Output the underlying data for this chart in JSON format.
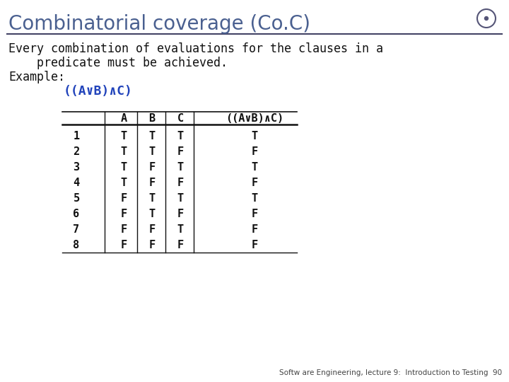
{
  "title": "Combinatorial coverage (Co.C)",
  "bg_color": "#ffffff",
  "title_color": "#4a6090",
  "title_fontsize": 20,
  "body_text_line1": "Every combination of evaluations for the clauses in a",
  "body_text_line2": "    predicate must be achieved.",
  "body_text_line3": "Example:",
  "formula": "((A∨B)∧C)",
  "formula_color": "#2244bb",
  "table_headers": [
    "",
    "A",
    "B",
    "C",
    "((A∨B)∧C)"
  ],
  "table_rows": [
    [
      "1",
      "T",
      "T",
      "T",
      "T"
    ],
    [
      "2",
      "T",
      "T",
      "F",
      "F"
    ],
    [
      "3",
      "T",
      "F",
      "T",
      "T"
    ],
    [
      "4",
      "T",
      "F",
      "F",
      "F"
    ],
    [
      "5",
      "F",
      "T",
      "T",
      "T"
    ],
    [
      "6",
      "F",
      "T",
      "F",
      "F"
    ],
    [
      "7",
      "F",
      "F",
      "T",
      "F"
    ],
    [
      "8",
      "F",
      "F",
      "F",
      "F"
    ]
  ],
  "footer_text": "Softw are Engineering, lecture 9:  Introduction to Testing  90",
  "footer_color": "#444444",
  "footer_fontsize": 7.5
}
